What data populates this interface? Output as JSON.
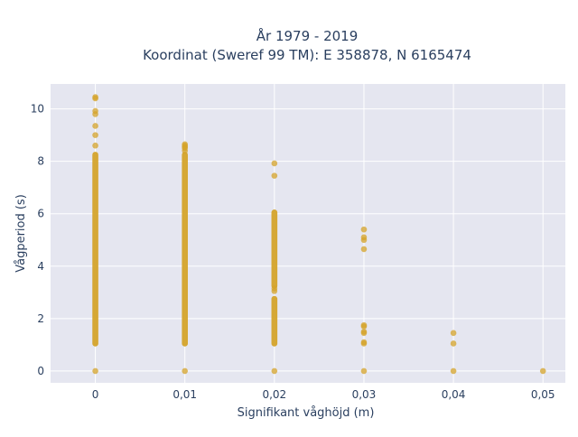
{
  "chart_data": {
    "type": "scatter",
    "title_lines": [
      "År 1979 - 2019",
      "Koordinat (Sweref 99 TM): E 358878, N 6165474"
    ],
    "xlabel": "Signifikant våghöjd (m)",
    "ylabel": "Vågperiod (s)",
    "xlim": [
      -0.005,
      0.0525
    ],
    "ylim": [
      -0.45,
      10.95
    ],
    "x_ticks": [
      {
        "value": 0,
        "label": "0"
      },
      {
        "value": 0.01,
        "label": "0,01"
      },
      {
        "value": 0.02,
        "label": "0,02"
      },
      {
        "value": 0.03,
        "label": "0,03"
      },
      {
        "value": 0.04,
        "label": "0,04"
      },
      {
        "value": 0.05,
        "label": "0,05"
      }
    ],
    "y_ticks": [
      {
        "value": 0,
        "label": "0"
      },
      {
        "value": 2,
        "label": "2"
      },
      {
        "value": 4,
        "label": "4"
      },
      {
        "value": 6,
        "label": "6"
      },
      {
        "value": 8,
        "label": "8"
      },
      {
        "value": 10,
        "label": "10"
      }
    ],
    "grid": true,
    "marker_color": "#d4a32a",
    "plot_background": "#e5e6f0",
    "series": [
      {
        "x": 0,
        "ranges": [
          [
            1.05,
            8.25
          ]
        ],
        "points": [
          0,
          8.6,
          9.0,
          9.35,
          9.8,
          9.92,
          10.4,
          10.45
        ]
      },
      {
        "x": 0.01,
        "ranges": [
          [
            1.05,
            8.25
          ]
        ],
        "points": [
          0,
          8.4,
          8.5,
          8.55,
          8.6,
          8.65
        ]
      },
      {
        "x": 0.02,
        "ranges": [
          [
            1.05,
            2.75
          ],
          [
            3.25,
            6.05
          ]
        ],
        "points": [
          0,
          3.05,
          3.15,
          7.45,
          7.92
        ]
      },
      {
        "x": 0.03,
        "ranges": [],
        "points": [
          0,
          1.05,
          1.1,
          1.45,
          1.5,
          1.7,
          1.75,
          4.65,
          5.0,
          5.1,
          5.4
        ]
      },
      {
        "x": 0.04,
        "ranges": [],
        "points": [
          0,
          1.05,
          1.45
        ]
      },
      {
        "x": 0.05,
        "ranges": [],
        "points": [
          0
        ]
      }
    ]
  }
}
